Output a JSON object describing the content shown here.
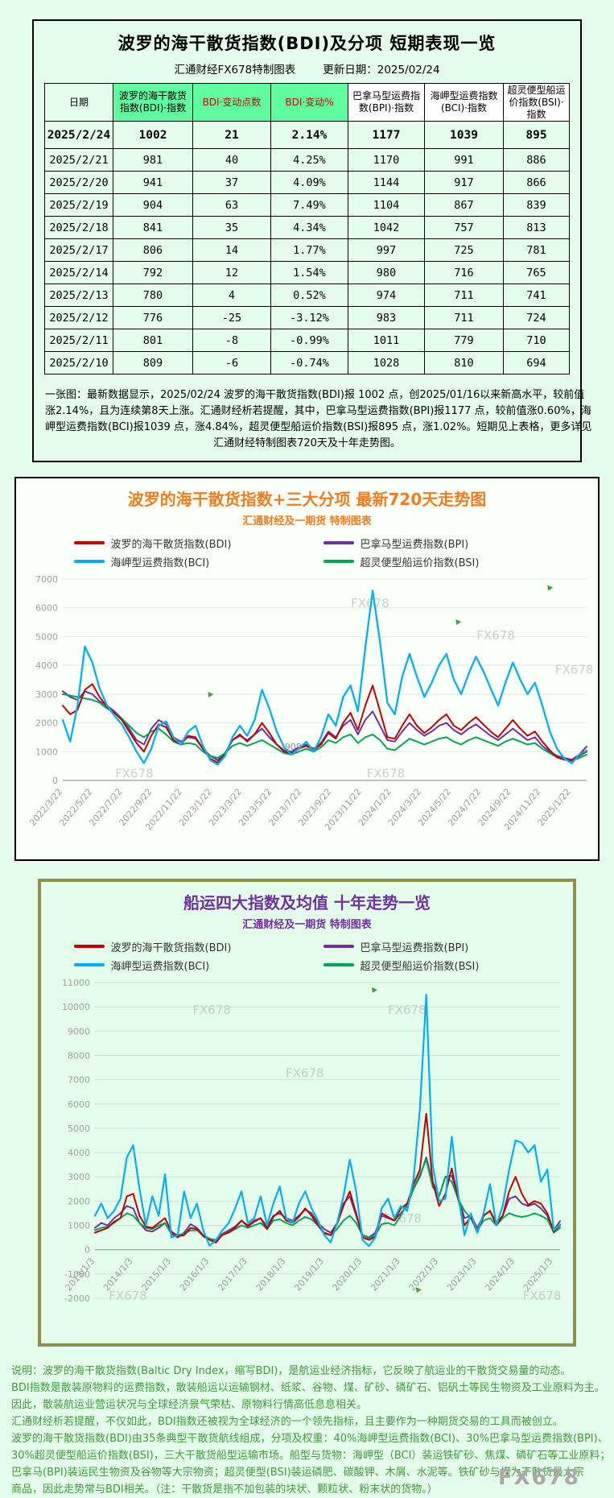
{
  "page": {
    "bg": "#e4fcea"
  },
  "report_table": {
    "title": "波罗的海干散货指数(BDI)及分项 短期表现一览",
    "subtitle_left": "汇通财经FX678特制图表",
    "subtitle_right": "更新日期：2025/02/24",
    "columns": [
      "日期",
      "波罗的海干散货指数(BDI)·指数",
      "BDI·变动点数",
      "BDI·变动%",
      "巴拿马型运费指数(BPI)·指数",
      "海岬型运费指数(BCI)·指数",
      "超灵便型船运价指数(BSI)·指数"
    ],
    "rows": [
      [
        "2025/2/24",
        "1002",
        "21",
        "2.14%",
        "1177",
        "1039",
        "895"
      ],
      [
        "2025/2/21",
        "981",
        "40",
        "4.25%",
        "1170",
        "991",
        "886"
      ],
      [
        "2025/2/20",
        "941",
        "37",
        "4.09%",
        "1144",
        "917",
        "866"
      ],
      [
        "2025/2/19",
        "904",
        "63",
        "7.49%",
        "1104",
        "867",
        "839"
      ],
      [
        "2025/2/18",
        "841",
        "35",
        "4.34%",
        "1042",
        "757",
        "813"
      ],
      [
        "2025/2/17",
        "806",
        "14",
        "1.77%",
        "997",
        "725",
        "781"
      ],
      [
        "2025/2/14",
        "792",
        "12",
        "1.54%",
        "980",
        "716",
        "765"
      ],
      [
        "2025/2/13",
        "780",
        "4",
        "0.52%",
        "974",
        "711",
        "741"
      ],
      [
        "2025/2/12",
        "776",
        "-25",
        "-3.12%",
        "983",
        "711",
        "724"
      ],
      [
        "2025/2/11",
        "801",
        "-8",
        "-0.99%",
        "1011",
        "779",
        "710"
      ],
      [
        "2025/2/10",
        "809",
        "-6",
        "-0.74%",
        "1028",
        "810",
        "694"
      ]
    ],
    "note_lines": [
      "一张图：最新数据显示，2025/02/24 波罗的海干散货指数(BDI)报 1002 点，创2025/01/16以来新高水平，较前值",
      "涨2.14%，且为连续第8天上涨。汇通财经析若提醒，其中，巴拿马型运费指数(BPI)报1177 点，较前值涨0.60%，海",
      "岬型运费指数(BCI)报1039 点，涨4.84%，超灵便型船运价指数(BSI)报895 点，涨1.02%。短期见上表格，更多详见",
      "汇通财经特制图表720天及十年走势图。"
    ]
  },
  "chart_data": [
    {
      "type": "line",
      "title": "波罗的海干散货指数+三大分项 最新720天走势图",
      "subtitle": "汇通财经及一期货 特制图表",
      "title_color": "#ed7d1f",
      "ylim": [
        0,
        7000
      ],
      "ytick_step": 1000,
      "grid": true,
      "legend_position": "top",
      "xlabel_span": 0.97,
      "xlabels_at_zero": false,
      "x_tick_labels": [
        "2022/3/22",
        "2022/5/22",
        "2022/7/22",
        "2022/9/22",
        "2022/11/22",
        "2023/1/22",
        "2023/3/22",
        "2023/5/22",
        "2023/7/22",
        "2023/9/22",
        "2023/11/22",
        "2024/1/22",
        "2024/3/22",
        "2024/5/22",
        "2024/7/22",
        "2024/9/22",
        "2024/11/22",
        "2025/1/22"
      ],
      "annotations": [
        {
          "text": "909",
          "x": 0.44,
          "value": 950
        }
      ],
      "watermarks": [
        {
          "text": "FX678",
          "x": 0.55,
          "y": 0.14
        },
        {
          "text": "FX678",
          "x": 0.79,
          "y": 0.3
        },
        {
          "text": "FX678",
          "x": 0.94,
          "y": 0.47
        },
        {
          "text": "FX678",
          "x": 0.1,
          "y": 0.985
        },
        {
          "text": "FX678",
          "x": 0.58,
          "y": 0.985
        }
      ],
      "cursor_marks": [
        {
          "x": 0.925,
          "y": 0.03
        },
        {
          "x": 0.75,
          "y": 0.2
        },
        {
          "x": 0.277,
          "y": 0.56
        }
      ],
      "series": [
        {
          "key": "bdi",
          "name": "波罗的海干散货指数(BDI)",
          "color": "#c00000",
          "values": [
            2600,
            2300,
            2450,
            3150,
            3350,
            2900,
            2550,
            2350,
            2100,
            1700,
            1300,
            1000,
            1550,
            1950,
            1850,
            1400,
            1250,
            1550,
            1500,
            1100,
            750,
            620,
            900,
            1400,
            1600,
            1350,
            1600,
            2000,
            1650,
            1250,
            1000,
            950,
            1100,
            1200,
            1050,
            1250,
            1650,
            1450,
            2000,
            2350,
            1750,
            2600,
            3300,
            2400,
            1500,
            1450,
            1900,
            2300,
            1900,
            1650,
            1850,
            2100,
            2300,
            1900,
            1750,
            2000,
            2200,
            1950,
            1700,
            1500,
            1800,
            2100,
            1800,
            1550,
            1700,
            1350,
            1050,
            800,
            720,
            700,
            850,
            1002
          ]
        },
        {
          "key": "bpi",
          "name": "巴拿马型运费指数(BPI)",
          "color": "#7030a0",
          "values": [
            3100,
            2900,
            2800,
            3100,
            3000,
            2750,
            2600,
            2400,
            2150,
            1800,
            1400,
            1250,
            1800,
            2100,
            1950,
            1500,
            1350,
            1500,
            1450,
            1100,
            850,
            700,
            950,
            1400,
            1550,
            1400,
            1600,
            1800,
            1500,
            1250,
            1050,
            1000,
            1150,
            1250,
            1100,
            1300,
            1700,
            1500,
            1900,
            2100,
            1600,
            2100,
            2400,
            1900,
            1400,
            1350,
            1700,
            2000,
            1750,
            1550,
            1700,
            1900,
            2000,
            1750,
            1600,
            1800,
            1950,
            1750,
            1550,
            1400,
            1600,
            1800,
            1600,
            1400,
            1500,
            1200,
            1000,
            850,
            780,
            720,
            900,
            1177
          ]
        },
        {
          "key": "bci",
          "name": "海岬型运费指数(BCI)",
          "color": "#00b0f0",
          "values": [
            2100,
            1350,
            2600,
            4650,
            4100,
            3200,
            2600,
            2250,
            1950,
            1500,
            1000,
            600,
            1100,
            1900,
            2050,
            1500,
            1250,
            1700,
            1900,
            1200,
            700,
            550,
            850,
            1500,
            1900,
            1550,
            2100,
            3150,
            2500,
            1700,
            1150,
            900,
            1100,
            1350,
            1000,
            1500,
            2300,
            1900,
            2900,
            3300,
            2400,
            4600,
            6600,
            4800,
            2700,
            2300,
            3600,
            4400,
            3600,
            2900,
            3400,
            4000,
            4400,
            3500,
            3000,
            3700,
            4300,
            3800,
            3200,
            2600,
            3400,
            4100,
            3500,
            3000,
            3400,
            2600,
            1700,
            1100,
            750,
            600,
            900,
            1039
          ]
        },
        {
          "key": "bsi",
          "name": "超灵便型船运价指数(BSI)",
          "color": "#00a651",
          "values": [
            3000,
            2950,
            2900,
            2850,
            2800,
            2700,
            2500,
            2350,
            2150,
            1900,
            1650,
            1500,
            1700,
            1800,
            1600,
            1350,
            1250,
            1300,
            1250,
            1000,
            850,
            780,
            950,
            1200,
            1300,
            1200,
            1300,
            1400,
            1250,
            1100,
            950,
            900,
            1000,
            1100,
            1000,
            1150,
            1400,
            1300,
            1500,
            1600,
            1300,
            1500,
            1600,
            1400,
            1100,
            1050,
            1250,
            1450,
            1350,
            1250,
            1350,
            1450,
            1500,
            1350,
            1250,
            1400,
            1500,
            1400,
            1300,
            1200,
            1350,
            1450,
            1350,
            1250,
            1300,
            1100,
            950,
            800,
            720,
            680,
            780,
            895
          ]
        }
      ]
    },
    {
      "type": "line",
      "title": "船运四大指数及均值 十年走势一览",
      "subtitle": "汇通财经及一期货 特制图表",
      "title_color": "#7030a0",
      "ylim": [
        -2000,
        11000
      ],
      "ytick_step": 1000,
      "grid": true,
      "legend_position": "top",
      "xlabel_span": 0.985,
      "xlabels_at_zero": true,
      "x_tick_labels": [
        "2013/1/3",
        "2014/1/3",
        "2015/1/3",
        "2016/1/3",
        "2017/1/3",
        "2018/1/3",
        "2019/1/3",
        "2020/1/3",
        "2021/1/3",
        "2022/1/3",
        "2023/1/3",
        "2024/1/3",
        "2025/1/3"
      ],
      "annotations": [],
      "watermarks": [
        {
          "text": "FX678",
          "x": 0.21,
          "y": 0.1
        },
        {
          "text": "FX678",
          "x": 0.63,
          "y": 0.1
        },
        {
          "text": "FX678",
          "x": 0.41,
          "y": 0.3
        },
        {
          "text": "FX678",
          "x": 0.62,
          "y": 0.76
        },
        {
          "text": "FX678",
          "x": 0.03,
          "y": 1.005
        },
        {
          "text": "FX678",
          "x": 0.92,
          "y": 1.005
        }
      ],
      "cursor_marks": [
        {
          "x": 0.69,
          "y": 0.965
        },
        {
          "x": 0.595,
          "y": 0.015
        }
      ],
      "series": [
        {
          "key": "bdi",
          "name": "波罗的海干散货指数(BDI)",
          "color": "#c00000",
          "values": [
            700,
            800,
            900,
            1150,
            1300,
            2200,
            2300,
            1400,
            950,
            900,
            1100,
            1300,
            750,
            560,
            600,
            900,
            850,
            550,
            400,
            290,
            620,
            720,
            900,
            1200,
            950,
            1150,
            1300,
            850,
            1350,
            1600,
            1200,
            1100,
            1350,
            1700,
            1400,
            1000,
            700,
            600,
            1050,
            1800,
            2400,
            1500,
            500,
            400,
            520,
            1500,
            1350,
            1200,
            1700,
            1900,
            2700,
            3300,
            5600,
            2800,
            1800,
            2300,
            3350,
            2100,
            1000,
            1350,
            700,
            1400,
            1600,
            1000,
            1400,
            2400,
            3000,
            2300,
            1850,
            2000,
            1900,
            1500,
            750,
            1002
          ]
        },
        {
          "key": "bpi",
          "name": "巴拿马型运费指数(BPI)",
          "color": "#7030a0",
          "values": [
            900,
            1100,
            1000,
            1300,
            1500,
            1800,
            1700,
            1100,
            800,
            750,
            900,
            1100,
            650,
            500,
            700,
            1050,
            900,
            600,
            450,
            350,
            650,
            800,
            950,
            1200,
            1000,
            1200,
            1300,
            950,
            1400,
            1500,
            1300,
            1200,
            1400,
            1650,
            1500,
            1100,
            850,
            700,
            1100,
            1900,
            2200,
            1400,
            600,
            500,
            700,
            1400,
            1300,
            1200,
            1500,
            1800,
            2500,
            3000,
            3800,
            2800,
            2200,
            3000,
            3050,
            2200,
            1300,
            1400,
            900,
            1400,
            1600,
            1100,
            1400,
            2100,
            2200,
            1900,
            1800,
            1900,
            1700,
            1400,
            800,
            1177
          ]
        },
        {
          "key": "bci",
          "name": "海岬型运费指数(BCI)",
          "color": "#00b0f0",
          "values": [
            1400,
            1900,
            1300,
            1600,
            2100,
            3800,
            4300,
            2500,
            1000,
            2200,
            1400,
            3100,
            500,
            600,
            2400,
            1300,
            1900,
            800,
            160,
            400,
            800,
            1100,
            1700,
            2400,
            1100,
            1300,
            2200,
            1000,
            1900,
            2600,
            1300,
            1100,
            1900,
            2400,
            1700,
            1200,
            600,
            300,
            1100,
            2200,
            3700,
            2400,
            400,
            150,
            500,
            1700,
            2100,
            1300,
            1800,
            1600,
            2900,
            5800,
            10500,
            3500,
            2000,
            2100,
            4650,
            2300,
            600,
            1500,
            700,
            1500,
            2700,
            1000,
            1800,
            3300,
            4500,
            4400,
            4000,
            4300,
            2800,
            3300,
            800,
            1039
          ]
        },
        {
          "key": "bsi",
          "name": "超灵便型船运价指数(BSI)",
          "color": "#00a651",
          "values": [
            800,
            900,
            950,
            1100,
            1300,
            1500,
            1400,
            1100,
            900,
            850,
            1000,
            1100,
            700,
            600,
            650,
            800,
            800,
            600,
            450,
            400,
            600,
            700,
            850,
            1000,
            900,
            1000,
            1100,
            850,
            1200,
            1250,
            1100,
            1000,
            1200,
            1350,
            1250,
            1000,
            650,
            600,
            850,
            1200,
            1400,
            1100,
            600,
            450,
            600,
            1050,
            1100,
            1000,
            1400,
            1900,
            2500,
            3100,
            3700,
            2600,
            2200,
            3000,
            2800,
            2100,
            1600,
            1300,
            800,
            1200,
            1300,
            1000,
            1300,
            1500,
            1400,
            1350,
            1400,
            1500,
            1400,
            1250,
            700,
            895
          ]
        }
      ]
    }
  ],
  "description_lines": [
    "说明：波罗的海干散货指数(Baltic Dry Index，缩写BDI)，是航运业经济指标，它反映了航运业的干散货交易量的动态。",
    "BDI指数是散装原物料的运费指数，散装船运以运输钢材、纸浆、谷物、煤、矿砂、磷矿石、铝矾土等民生物资及工业原料为主。",
    "因此，散装航运业营运状况与全球经济景气荣枯、原物料行情高低息息相关。",
    "汇通财经析若提醒，不仅如此，BDI指数还被视为全球经济的一个领先指标，且主要作为一种期货交易的工具而被创立。",
    "波罗的海干散货指数(BDI)由35条典型干散货航线组成，分项及权重：40%海岬型运费指数(BCI)、30%巴拿马型运费指数(BPI)、",
    "30%超灵便型船运价指数(BSI)，三大干散货船型运输市场。船型与货物：海岬型（BCI）装运铁矿砂、焦煤、磷矿石等工业原料；",
    "巴拿马(BPI)装运民生物资及谷物等大宗物资；超灵便型(BSI)装运磷肥、碳酸钾、木屑、水泥等。铁矿砂与煤为干散货最大宗",
    "商品，因此走势常与BDI相关。（注：干散货是指不加包装的块状、颗粒状、粉末状的货物。）"
  ],
  "logo": "FX678"
}
